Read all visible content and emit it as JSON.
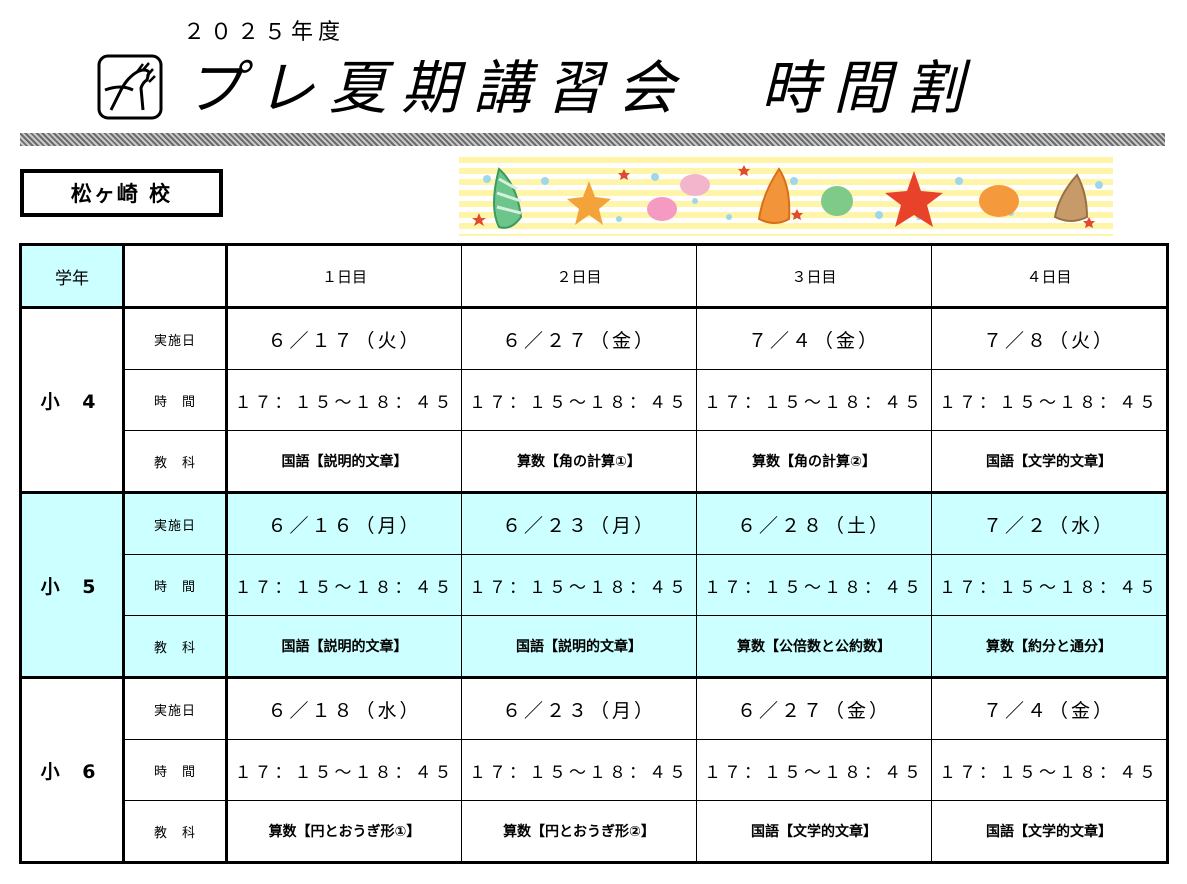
{
  "header": {
    "year": "２０２５年度",
    "title": "プレ夏期講習会　時間割"
  },
  "school": "松ヶ崎 校",
  "table": {
    "grade_header": "学年",
    "days": [
      "１日目",
      "２日目",
      "３日目",
      "４日目"
    ],
    "row_labels": {
      "date": "実施日",
      "time": "時　間",
      "subject": "教　科"
    },
    "grades": [
      {
        "name": "小 4",
        "dates": [
          "６／１７（火）",
          "６／２７（金）",
          "７／４（金）",
          "７／８（火）"
        ],
        "times": [
          "１７：１５～１８：４５",
          "１７：１５～１８：４５",
          "１７：１５～１８：４５",
          "１７：１５～１８：４５"
        ],
        "subjects": [
          "国語【説明的文章】",
          "算数【角の計算①】",
          "算数【角の計算②】",
          "国語【文学的文章】"
        ]
      },
      {
        "name": "小 5",
        "dates": [
          "６／１６（月）",
          "６／２３（月）",
          "６／２８（土）",
          "７／２（水）"
        ],
        "times": [
          "１７：１５～１８：４５",
          "１７：１５～１８：４５",
          "１７：１５～１８：４５",
          "１７：１５～１８：４５"
        ],
        "subjects": [
          "国語【説明的文章】",
          "国語【説明的文章】",
          "算数【公倍数と公約数】",
          "算数【約分と通分】"
        ]
      },
      {
        "name": "小 6",
        "dates": [
          "６／１８（水）",
          "６／２３（月）",
          "６／２７（金）",
          "７／４（金）"
        ],
        "times": [
          "１７：１５～１８：４５",
          "１７：１５～１８：４５",
          "１７：１５～１８：４５",
          "１７：１５～１８：４５"
        ],
        "subjects": [
          "算数【円とおうぎ形①】",
          "算数【円とおうぎ形②】",
          "国語【文学的文章】",
          "国語【文学的文章】"
        ]
      }
    ]
  },
  "colors": {
    "highlight": "#ccffff",
    "banner_stripe": "#fff5a8"
  }
}
